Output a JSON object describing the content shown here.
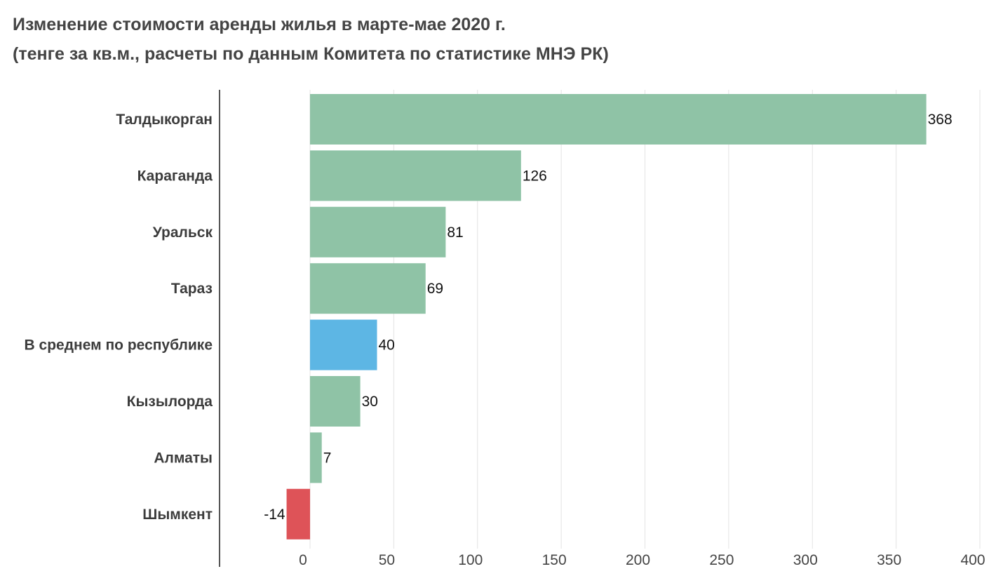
{
  "chart_data": {
    "type": "bar",
    "orientation": "horizontal",
    "title": "Изменение стоимости аренды жилья в марте-мае 2020 г.",
    "subtitle": "(тенге за кв.м., расчеты по данным Комитета по статистике МНЭ РК)",
    "categories": [
      "Талдыкорган",
      "Караганда",
      "Уральск",
      "Тараз",
      "В среднем по республике",
      "Кызылорда",
      "Алматы",
      "Шымкент"
    ],
    "values": [
      368,
      126,
      81,
      69,
      40,
      30,
      7,
      -14
    ],
    "value_labels": [
      "368",
      "126",
      "81",
      "69",
      "40",
      "30",
      "7",
      "-14"
    ],
    "bar_colors": [
      "#8fc3a6",
      "#8fc3a6",
      "#8fc3a6",
      "#8fc3a6",
      "#5db6e4",
      "#8fc3a6",
      "#8fc3a6",
      "#de5358"
    ],
    "xlim": [
      -54,
      400
    ],
    "x_ticks": [
      0,
      50,
      100,
      150,
      200,
      250,
      300,
      350,
      400
    ],
    "x_tick_labels": [
      "0",
      "50",
      "100",
      "150",
      "200",
      "250",
      "300",
      "350",
      "400"
    ],
    "grid": true,
    "xlabel": "",
    "ylabel": ""
  }
}
